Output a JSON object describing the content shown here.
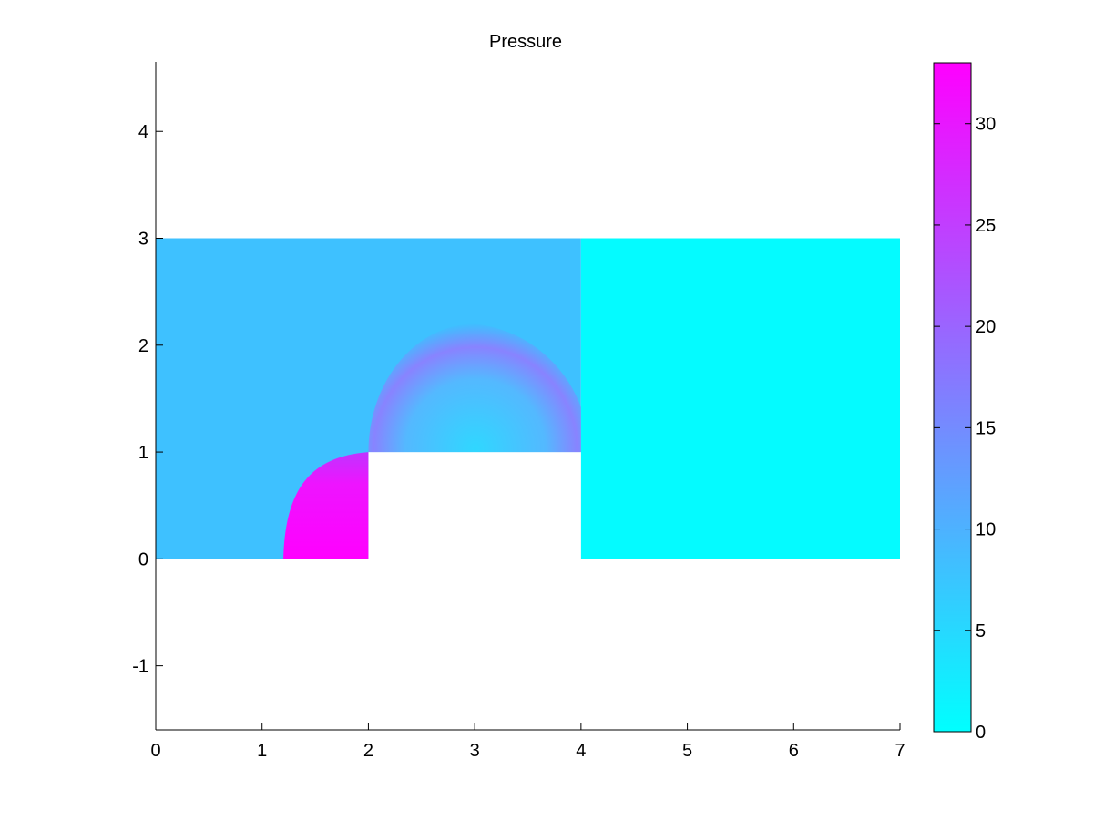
{
  "chart_data": {
    "type": "heatmap",
    "title": "Pressure",
    "xlabel": "",
    "ylabel": "",
    "xlim": [
      0,
      7
    ],
    "ylim": [
      -1.6,
      4.65
    ],
    "x_ticks": [
      "0",
      "1",
      "2",
      "3",
      "4",
      "5",
      "6",
      "7"
    ],
    "y_ticks": [
      "-1",
      "0",
      "1",
      "2",
      "3",
      "4"
    ],
    "grid": false,
    "colormap": {
      "name": "cool",
      "low": "#00ffff",
      "high": "#ff00ff"
    },
    "colorbar": {
      "range": [
        0,
        33
      ],
      "ticks": [
        "0",
        "5",
        "10",
        "15",
        "20",
        "25",
        "30"
      ]
    },
    "domain_regions": [
      {
        "name": "left-region",
        "x": [
          0,
          4
        ],
        "y": [
          0,
          3
        ],
        "value": 8
      },
      {
        "name": "right-region",
        "x": [
          4,
          7
        ],
        "y": [
          0,
          3
        ],
        "value": 0.5
      },
      {
        "name": "obstacle-cutout",
        "x": [
          2,
          4
        ],
        "y": [
          0,
          1
        ],
        "value": null
      }
    ],
    "features": [
      {
        "name": "high-pressure-jet",
        "x": [
          1.2,
          2
        ],
        "y": [
          0,
          1
        ],
        "value": 33
      },
      {
        "name": "pressure-arc",
        "center": [
          3,
          1
        ],
        "inner_radius": 0,
        "outer_radius": 1.2,
        "value_range": [
          5,
          30
        ]
      }
    ]
  }
}
